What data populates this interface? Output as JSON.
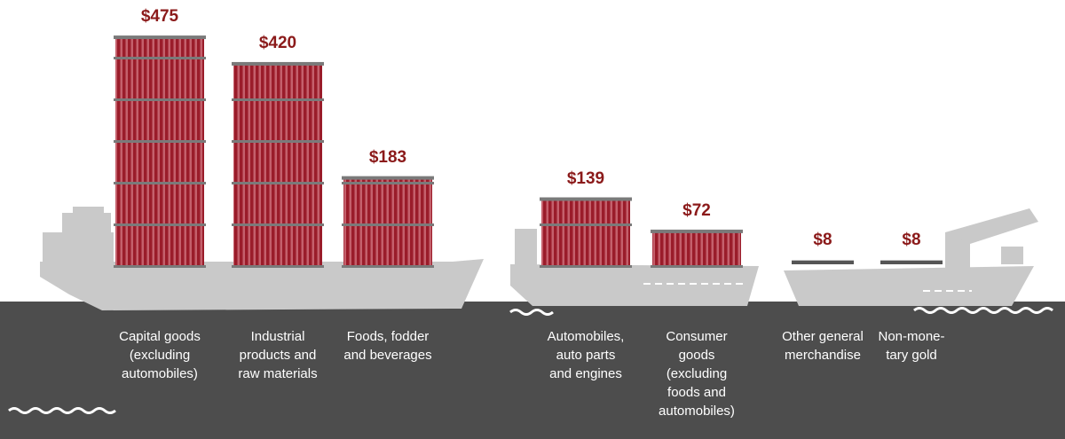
{
  "chart_data": {
    "type": "bar",
    "categories": [
      "Capital goods\n(excluding\nautomobiles)",
      "Industrial\nproducts and\nraw materials",
      "Foods, fodder\nand beverages",
      "Automobiles,\nauto parts\nand engines",
      "Consumer\ngoods\n(excluding\nfoods and\nautomobiles)",
      "Other general\nmerchandise",
      "Non-mone-\ntary gold"
    ],
    "values": [
      475,
      420,
      183,
      139,
      72,
      8,
      8
    ],
    "value_labels": [
      "$475",
      "$420",
      "$183",
      "$139",
      "$72",
      "$8",
      "$8"
    ],
    "color": "#a3202f"
  }
}
